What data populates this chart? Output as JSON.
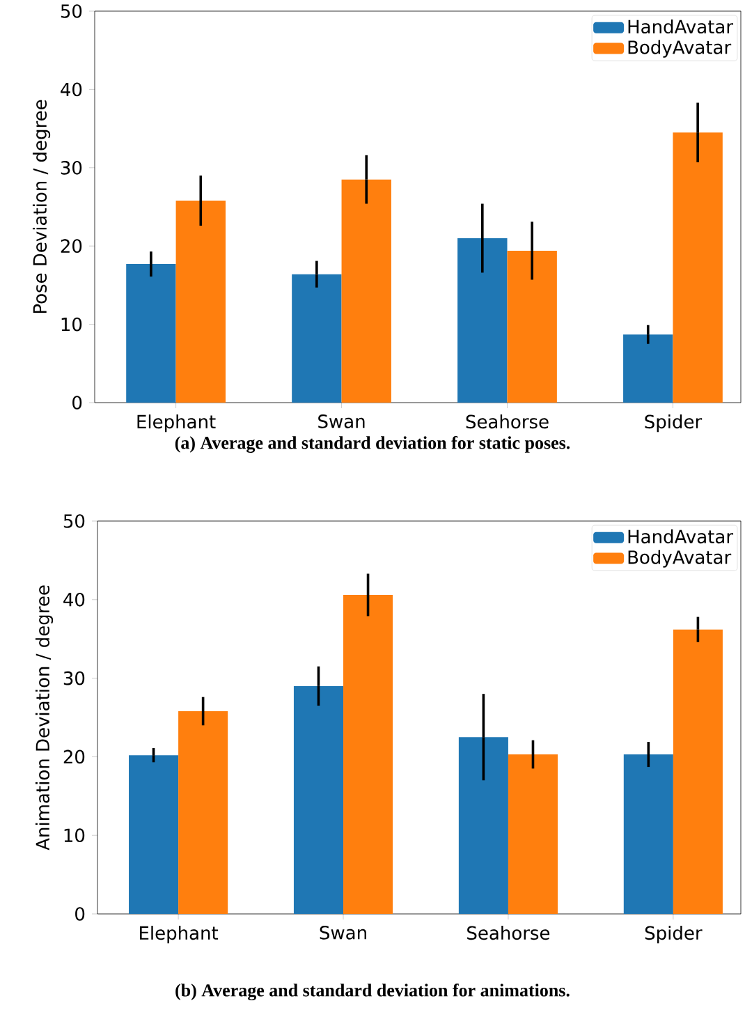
{
  "chart_data": [
    {
      "type": "bar",
      "categories": [
        "Elephant",
        "Swan",
        "Seahorse",
        "Spider"
      ],
      "ylabel": "Pose Deviation / degree",
      "ylim": [
        0,
        50
      ],
      "yticks": [
        0,
        10,
        20,
        30,
        40,
        50
      ],
      "legend": "top right",
      "series": [
        {
          "name": "HandAvatar",
          "color": "#1f77b4",
          "values": [
            17.7,
            16.4,
            21.0,
            8.7
          ],
          "errors": [
            1.6,
            1.7,
            4.4,
            1.2
          ]
        },
        {
          "name": "BodyAvatar",
          "color": "#ff7f0e",
          "values": [
            25.8,
            28.5,
            19.4,
            34.5
          ],
          "errors": [
            3.2,
            3.1,
            3.7,
            3.8
          ]
        }
      ],
      "annotations": [
        "(a) Average and standard deviation for static poses."
      ]
    },
    {
      "type": "bar",
      "categories": [
        "Elephant",
        "Swan",
        "Seahorse",
        "Spider"
      ],
      "ylabel": "Animation Deviation / degree",
      "ylim": [
        0,
        50
      ],
      "yticks": [
        0,
        10,
        20,
        30,
        40,
        50
      ],
      "legend": "top right",
      "series": [
        {
          "name": "HandAvatar",
          "color": "#1f77b4",
          "values": [
            20.2,
            29.0,
            22.5,
            20.3
          ],
          "errors": [
            0.9,
            2.5,
            5.5,
            1.6
          ]
        },
        {
          "name": "BodyAvatar",
          "color": "#ff7f0e",
          "values": [
            25.8,
            40.6,
            20.3,
            36.2
          ],
          "errors": [
            1.8,
            2.7,
            1.8,
            1.6
          ]
        }
      ],
      "annotations": [
        "(b) Average and standard deviation for animations."
      ]
    }
  ]
}
